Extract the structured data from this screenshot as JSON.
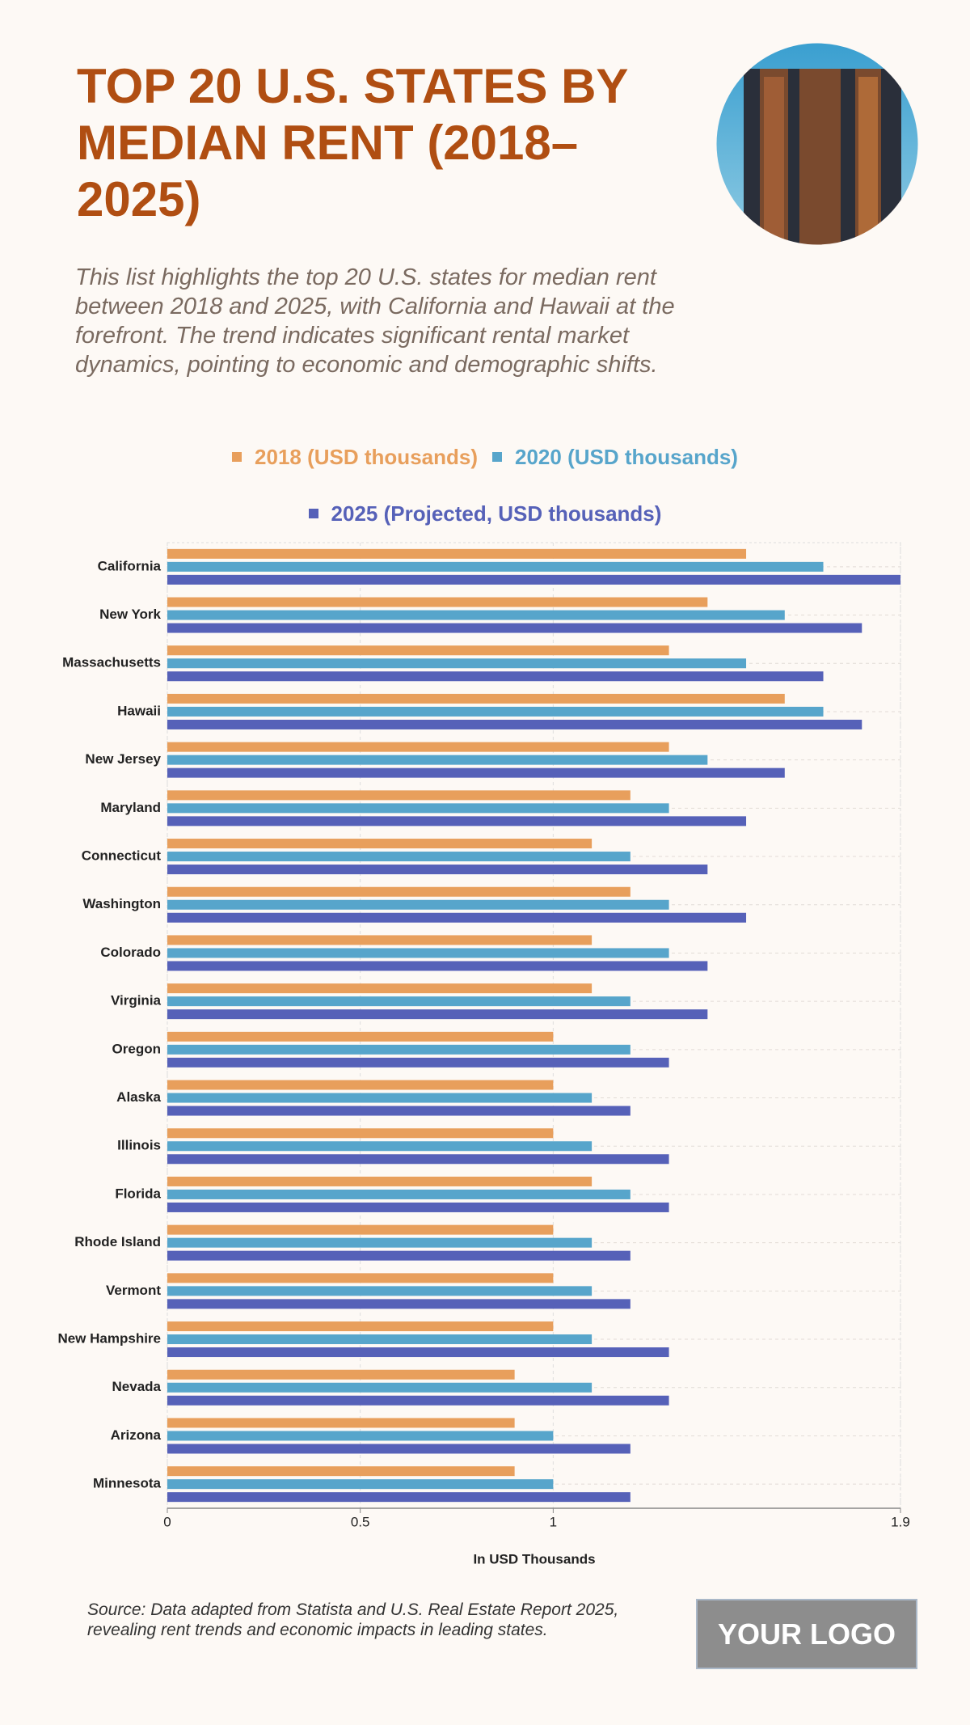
{
  "chart_data": {
    "type": "bar",
    "orientation": "horizontal",
    "title": "TOP 20 U.S. STATES BY MEDIAN RENT (2018–2025)",
    "subtitle": "This list highlights the top 20 U.S. states for median rent between 2018 and 2025, with California and Hawaii at the forefront. The trend indicates significant rental market dynamics, pointing to economic and demographic shifts.",
    "categories": [
      "California",
      "New York",
      "Massachusetts",
      "Hawaii",
      "New Jersey",
      "Maryland",
      "Connecticut",
      "Washington",
      "Colorado",
      "Virginia",
      "Oregon",
      "Alaska",
      "Illinois",
      "Florida",
      "Rhode Island",
      "Vermont",
      "New Hampshire",
      "Nevada",
      "Arizona",
      "Minnesota"
    ],
    "series": [
      {
        "name": "2018 (USD thousands)",
        "color": "#E89F5C",
        "values": [
          1.5,
          1.4,
          1.3,
          1.6,
          1.3,
          1.2,
          1.1,
          1.2,
          1.1,
          1.1,
          1.0,
          1.0,
          1.0,
          1.1,
          1.0,
          1.0,
          1.0,
          0.9,
          0.9,
          0.9
        ]
      },
      {
        "name": "2020 (USD thousands)",
        "color": "#57A5CB",
        "values": [
          1.7,
          1.6,
          1.5,
          1.7,
          1.4,
          1.3,
          1.2,
          1.3,
          1.3,
          1.2,
          1.2,
          1.1,
          1.1,
          1.2,
          1.1,
          1.1,
          1.1,
          1.1,
          1.0,
          1.0
        ]
      },
      {
        "name": "2025 (Projected, USD thousands)",
        "color": "#5661B8",
        "values": [
          1.9,
          1.8,
          1.7,
          1.8,
          1.6,
          1.5,
          1.4,
          1.5,
          1.4,
          1.4,
          1.3,
          1.2,
          1.3,
          1.3,
          1.2,
          1.2,
          1.3,
          1.3,
          1.2,
          1.2
        ]
      }
    ],
    "xlabel": "In USD Thousands",
    "xlim": [
      0,
      1.9
    ],
    "xticks": [
      0,
      0.5,
      1,
      1.9
    ],
    "grid": true,
    "source": "Source: Data adapted from Statista and U.S. Real Estate Report 2025, revealing rent trends and economic impacts in leading states."
  },
  "logo": "YOUR LOGO"
}
